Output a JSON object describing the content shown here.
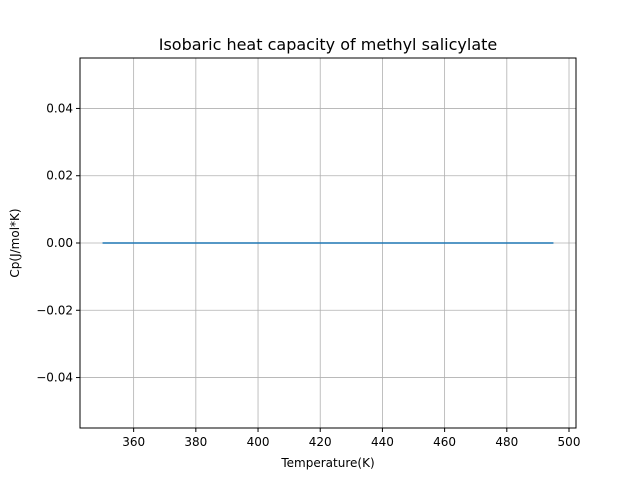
{
  "chart_data": {
    "type": "line",
    "title": "Isobaric heat capacity of methyl salicylate",
    "xlabel": "Temperature(K)",
    "ylabel": "Cp(J/mol*K)",
    "xlim": [
      342.75,
      502.25
    ],
    "ylim": [
      -0.055,
      0.055
    ],
    "xticks": [
      360,
      380,
      400,
      420,
      440,
      460,
      480,
      500
    ],
    "xtick_labels": [
      "360",
      "380",
      "400",
      "420",
      "440",
      "460",
      "480",
      "500"
    ],
    "yticks": [
      -0.04,
      -0.02,
      0.0,
      0.02,
      0.04
    ],
    "ytick_labels": [
      "−0.04",
      "−0.02",
      "0.00",
      "0.02",
      "0.04"
    ],
    "grid": true,
    "series": [
      {
        "color": "#1f77b4",
        "x": [
          350,
          495
        ],
        "y": [
          0.0,
          0.0
        ]
      }
    ]
  }
}
